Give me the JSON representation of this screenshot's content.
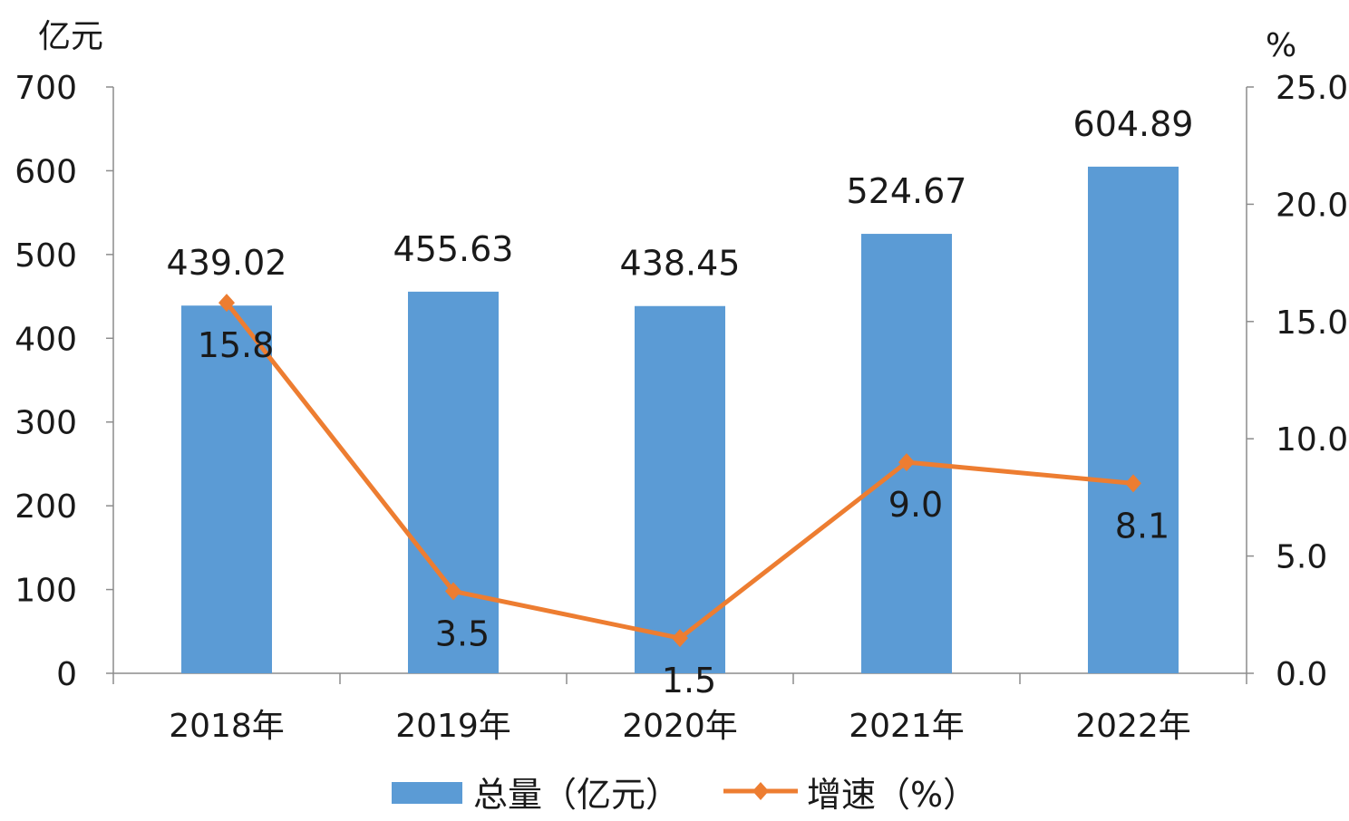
{
  "chart_data": {
    "type": "bar",
    "categories": [
      "2018年",
      "2019年",
      "2020年",
      "2021年",
      "2022年"
    ],
    "series": [
      {
        "name": "总量（亿元）",
        "type": "bar",
        "axis": "left",
        "values": [
          439.02,
          455.63,
          438.45,
          524.67,
          604.89
        ],
        "labels": [
          "439.02",
          "455.63",
          "438.45",
          "524.67",
          "604.89"
        ]
      },
      {
        "name": "增速（%）",
        "type": "line",
        "axis": "right",
        "values": [
          15.8,
          3.5,
          1.5,
          9.0,
          8.1
        ],
        "labels": [
          "15.8",
          "3.5",
          "1.5",
          "9.0",
          "8.1"
        ]
      }
    ],
    "y_left": {
      "unit": "亿元",
      "ylim": [
        0,
        700
      ],
      "ticks": [
        "0",
        "100",
        "200",
        "300",
        "400",
        "500",
        "600",
        "700"
      ]
    },
    "y_right": {
      "unit": "%",
      "ylim": [
        0,
        25
      ],
      "ticks": [
        "0.0",
        "5.0",
        "10.0",
        "15.0",
        "20.0",
        "25.0"
      ]
    },
    "grid": false,
    "legend_position": "bottom",
    "colors": {
      "bar": "#5b9bd5",
      "line": "#ed7d31",
      "axis": "#8c8c8c"
    }
  }
}
